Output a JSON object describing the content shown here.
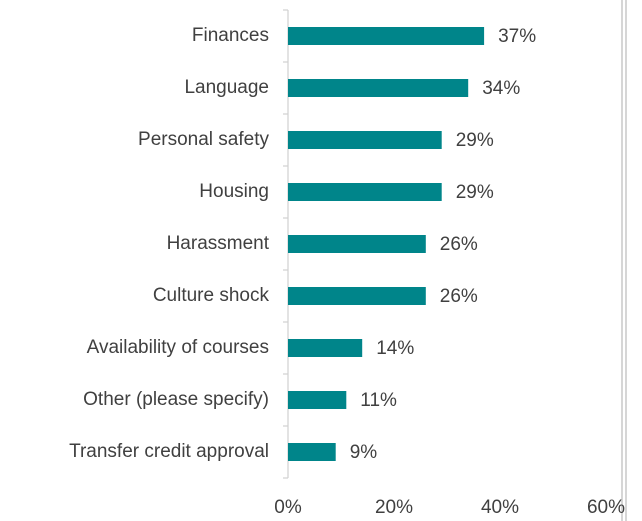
{
  "chart_data": {
    "type": "bar",
    "orientation": "horizontal",
    "categories": [
      "Finances",
      "Language",
      "Personal safety",
      "Housing",
      "Harassment",
      "Culture shock",
      "Availability of courses",
      "Other (please specify)",
      "Transfer credit approval"
    ],
    "values": [
      37,
      34,
      29,
      29,
      26,
      26,
      14,
      11,
      9
    ],
    "value_labels": [
      "37%",
      "34%",
      "29%",
      "29%",
      "26%",
      "26%",
      "14%",
      "11%",
      "9%"
    ],
    "color": "#00858a",
    "xlim": [
      0,
      60
    ],
    "xticks": [
      {
        "value": 0,
        "label": "0%"
      },
      {
        "value": 20,
        "label": "20%"
      },
      {
        "value": 40,
        "label": "40%"
      },
      {
        "value": 60,
        "label": "60%"
      }
    ],
    "grid": false
  }
}
